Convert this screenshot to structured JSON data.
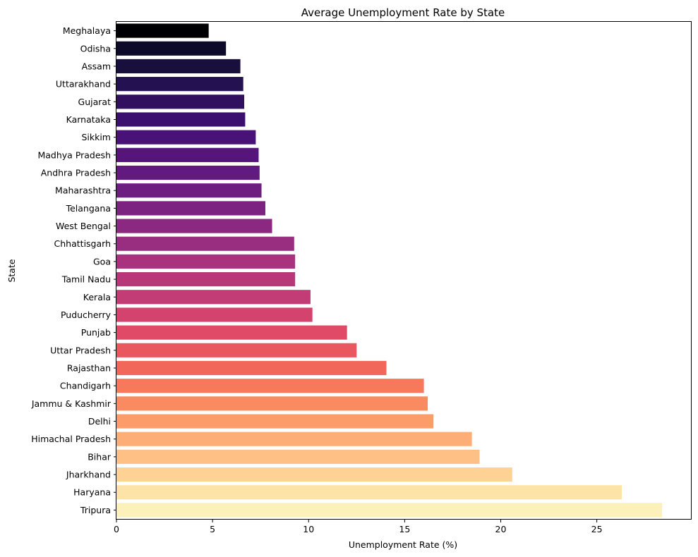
{
  "chart_data": {
    "type": "bar",
    "orientation": "horizontal",
    "title": "Average Unemployment Rate by State",
    "xlabel": "Unemployment Rate (%)",
    "ylabel": "State",
    "xlim": [
      0,
      29.9
    ],
    "xticks": [
      0,
      5,
      10,
      15,
      20,
      25
    ],
    "grid": false,
    "colormap": "magma",
    "categories": [
      "Meghalaya",
      "Odisha",
      "Assam",
      "Uttarakhand",
      "Gujarat",
      "Karnataka",
      "Sikkim",
      "Madhya Pradesh",
      "Andhra Pradesh",
      "Maharashtra",
      "Telangana",
      "West Bengal",
      "Chhattisgarh",
      "Goa",
      "Tamil Nadu",
      "Kerala",
      "Puducherry",
      "Punjab",
      "Uttar Pradesh",
      "Rajasthan",
      "Chandigarh",
      "Jammu & Kashmir",
      "Delhi",
      "Himachal Pradesh",
      "Bihar",
      "Jharkhand",
      "Haryana",
      "Tripura"
    ],
    "values": [
      4.8,
      5.7,
      6.45,
      6.6,
      6.65,
      6.7,
      7.25,
      7.4,
      7.45,
      7.55,
      7.75,
      8.1,
      9.25,
      9.3,
      9.3,
      10.1,
      10.2,
      12.0,
      12.5,
      14.05,
      16.0,
      16.2,
      16.5,
      18.5,
      18.9,
      20.6,
      26.3,
      28.4
    ],
    "colors": [
      "#000004",
      "#0d0a29",
      "#180f3d",
      "#231151",
      "#30105f",
      "#3b0f70",
      "#481278",
      "#55157d",
      "#611a80",
      "#6e1e81",
      "#7c2382",
      "#8a2882",
      "#992d80",
      "#a8327d",
      "#b73779",
      "#c43c75",
      "#d3436e",
      "#e04a66",
      "#e9575f",
      "#f1685b",
      "#f6795c",
      "#fa8a60",
      "#fc9d69",
      "#fdae77",
      "#fec085",
      "#fed295",
      "#fde3a8",
      "#fcf0bb"
    ]
  }
}
